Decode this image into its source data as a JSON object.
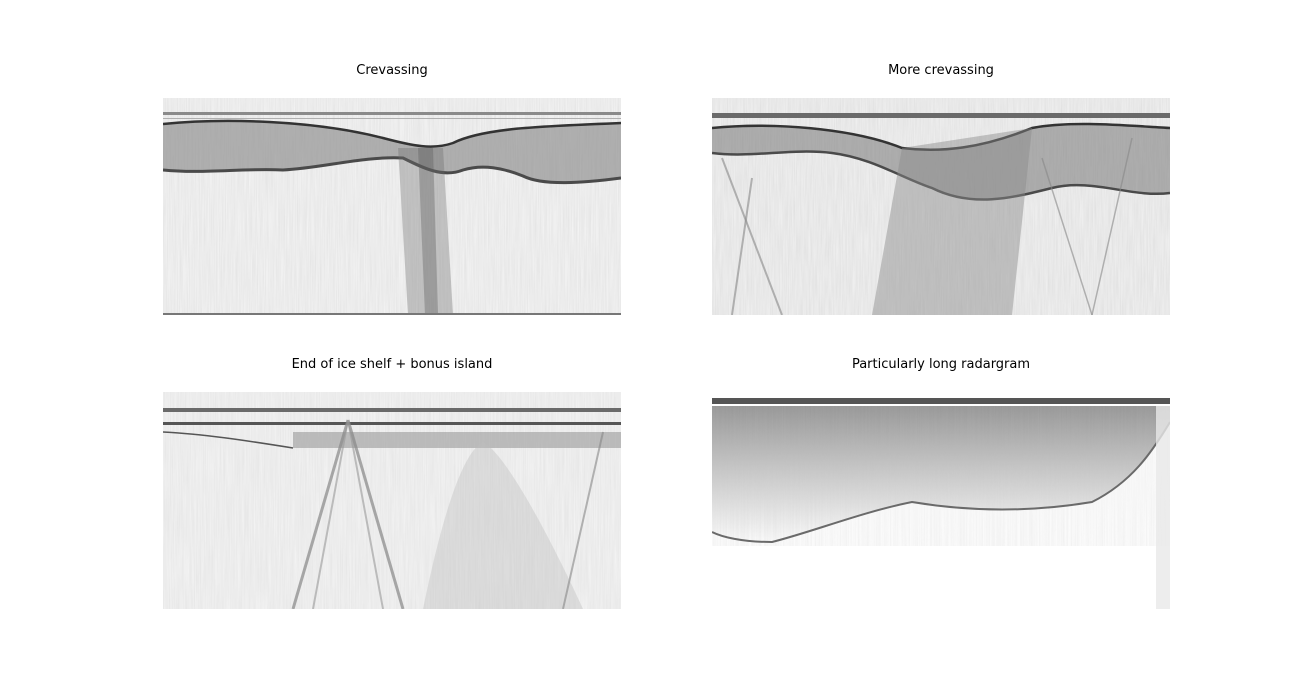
{
  "figure": {
    "colormap": "grayscale",
    "background": "#ffffff",
    "panels": [
      {
        "title": "Crevassing"
      },
      {
        "title": "More crevassing"
      },
      {
        "title": "End of ice shelf + bonus island"
      },
      {
        "title": "Particularly long radargram"
      }
    ]
  }
}
